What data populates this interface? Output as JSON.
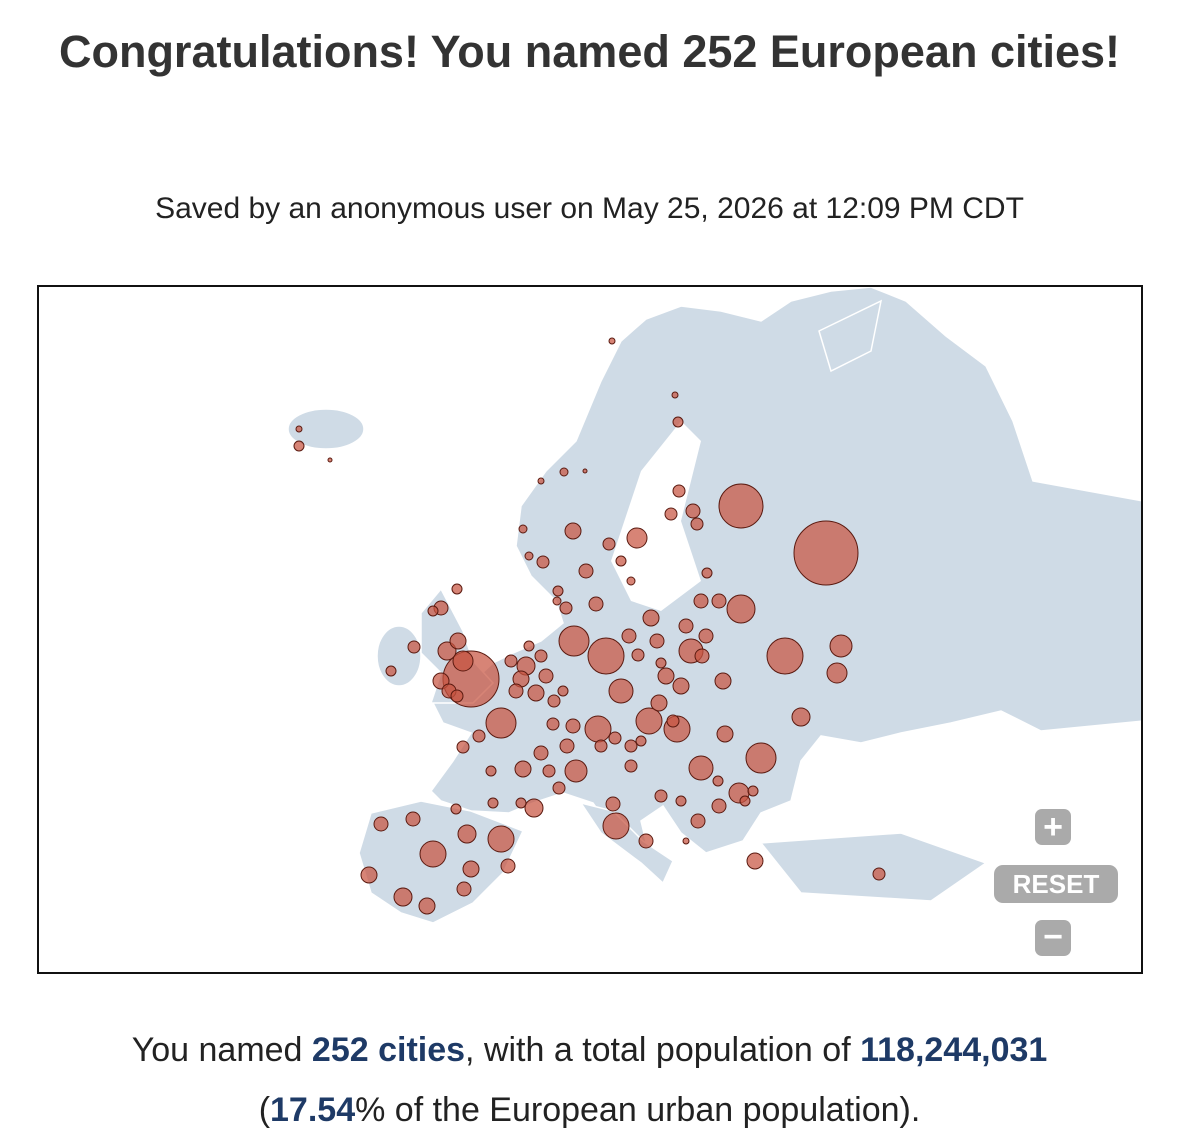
{
  "header": {
    "title": "Congratulations! You named 252 European cities!",
    "subtitle": "Saved by an anonymous user on May 25, 2026 at 12:09 PM CDT"
  },
  "map": {
    "controls": {
      "zoom_in": "+",
      "reset": "RESET",
      "zoom_out": "−"
    }
  },
  "summary": {
    "lead": "You named ",
    "cities": "252 cities",
    "middle": ", with a total population of ",
    "population": "118,244,031",
    "open": "(",
    "percent": "17.54",
    "tail": "% of the European urban population)."
  }
}
